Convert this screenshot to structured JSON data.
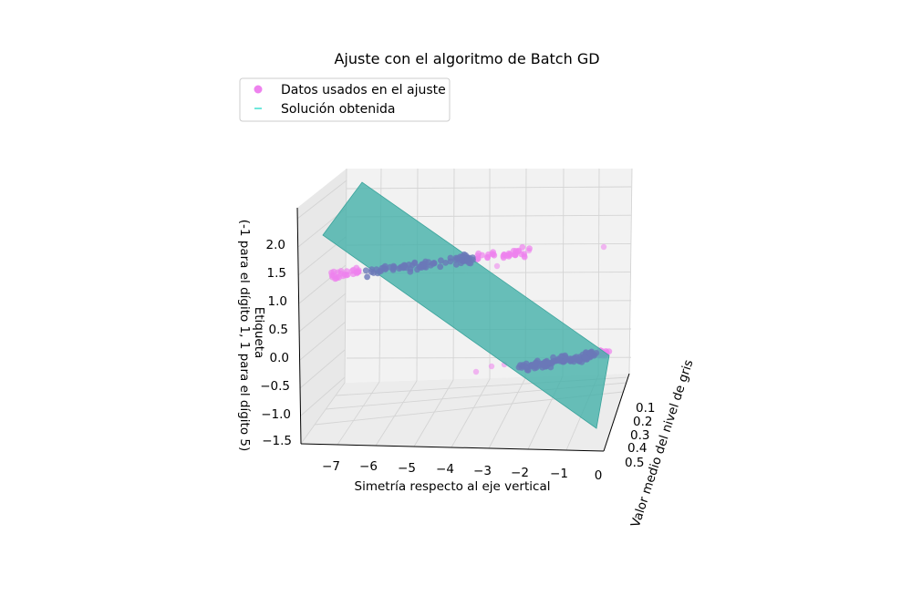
{
  "chart_data": {
    "type": "scatter",
    "title": "Ajuste con el algoritmo de Batch GD",
    "legend": {
      "placement": "top-left",
      "entries": [
        {
          "label": "Datos usados en el ajuste",
          "marker": "circle",
          "color": "#ee82ee"
        },
        {
          "label": "Solución obtenida",
          "marker": "line",
          "color": "#40e0d0"
        }
      ]
    },
    "xlabel": "Simetría respecto al eje vertical",
    "ylabel": "Valor medio del nivel de gris",
    "zlabel_line1": "Etiqueta",
    "zlabel_line2": "(-1 para el dígito 1, 1 para el dígito 5)",
    "x_ticks": [
      "−7",
      "−6",
      "−5",
      "−4",
      "−3",
      "−2",
      "−1",
      "0"
    ],
    "y_ticks": [
      "0.1",
      "0.2",
      "0.3",
      "0.4",
      "0.5"
    ],
    "z_ticks": [
      "2.0",
      "1.5",
      "1.0",
      "0.5",
      "0.0",
      "−0.5",
      "−1.0",
      "−1.5"
    ],
    "xlim": [
      -7.5,
      0.2
    ],
    "ylim": [
      0.0,
      0.55
    ],
    "zlim": [
      -1.6,
      2.3
    ],
    "grid": true,
    "series": [
      {
        "name": "Datos usados en el ajuste",
        "clusters": [
          {
            "x_range": [
              -7.0,
              -3.3
            ],
            "y_range": [
              0.1,
              0.45
            ],
            "z": 1.0,
            "n": 140
          },
          {
            "x_range": [
              -1.5,
              0.0
            ],
            "y_range": [
              0.05,
              0.2
            ],
            "z": -1.0,
            "n": 120
          }
        ],
        "outliers": [
          {
            "x": -3.0,
            "y": 0.25,
            "z": 1.0
          },
          {
            "x": -2.6,
            "y": 0.22,
            "z": 1.0
          },
          {
            "x": -0.4,
            "y": 0.45,
            "z": 1.0
          },
          {
            "x": -3.9,
            "y": 0.5,
            "z": -1.0
          },
          {
            "x": -3.5,
            "y": 0.48,
            "z": -1.0
          }
        ],
        "color": "#ee82ee"
      },
      {
        "name": "Solución obtenida",
        "type": "surface",
        "color": "#40e0d0"
      }
    ]
  }
}
